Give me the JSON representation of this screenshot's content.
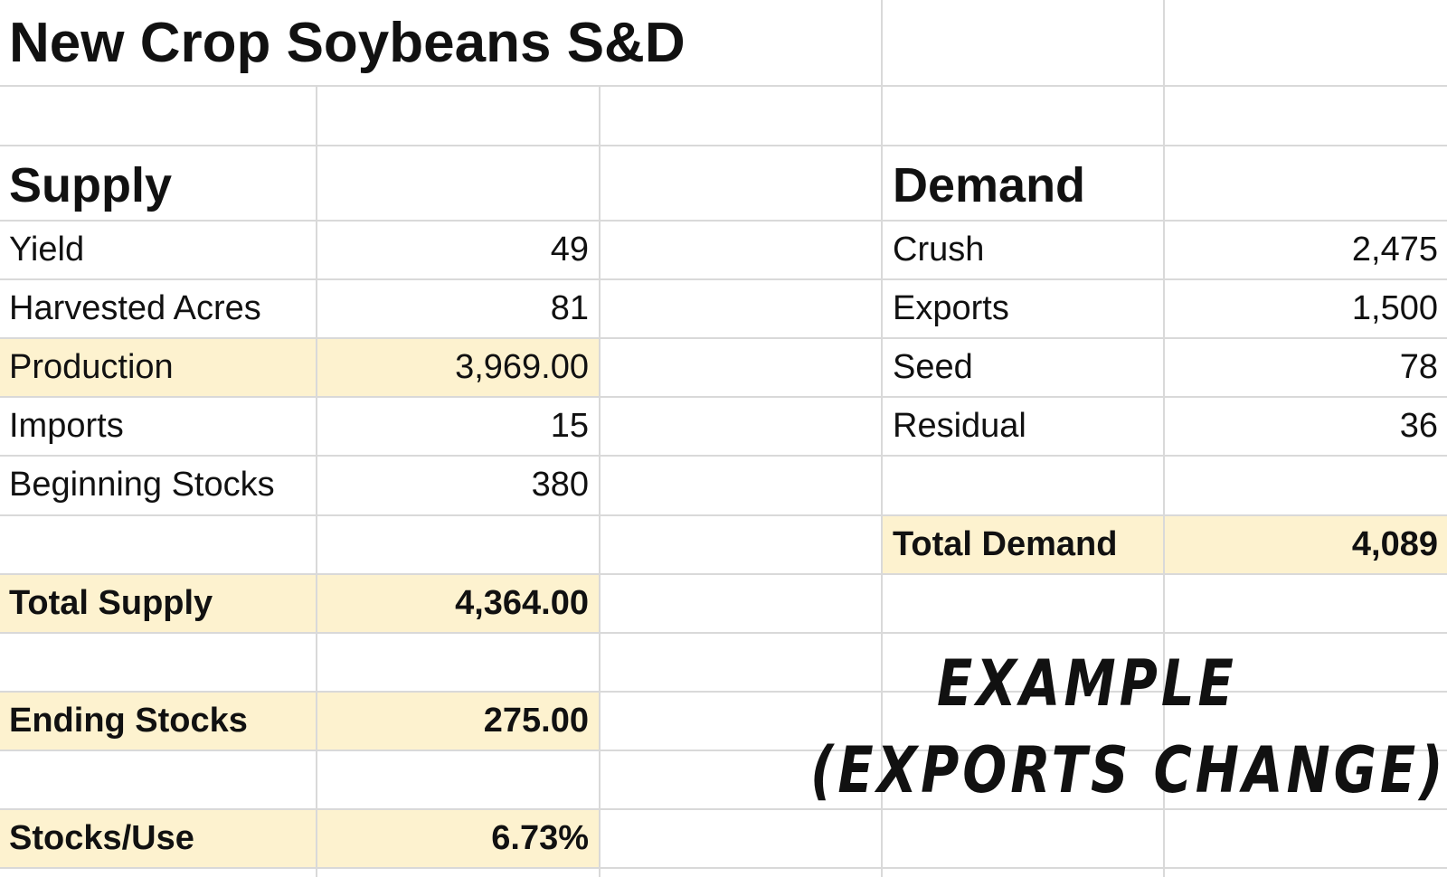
{
  "title": "New Crop Soybeans S&D",
  "supply": {
    "heading": "Supply",
    "rows": [
      {
        "label": "Yield",
        "value": "49"
      },
      {
        "label": "Harvested Acres",
        "value": "81"
      },
      {
        "label": "Production",
        "value": "3,969.00"
      },
      {
        "label": "Imports",
        "value": "15"
      },
      {
        "label": "Beginning Stocks",
        "value": "380"
      }
    ],
    "total": {
      "label": "Total Supply",
      "value": "4,364.00"
    },
    "ending_stocks": {
      "label": "Ending Stocks",
      "value": "275.00"
    },
    "stocks_use": {
      "label": "Stocks/Use",
      "value": "6.73%"
    }
  },
  "demand": {
    "heading": "Demand",
    "rows": [
      {
        "label": "Crush",
        "value": "2,475"
      },
      {
        "label": "Exports",
        "value": "1,500"
      },
      {
        "label": "Seed",
        "value": "78"
      },
      {
        "label": "Residual",
        "value": "36"
      }
    ],
    "total": {
      "label": "Total Demand",
      "value": "4,089"
    }
  },
  "overlay": {
    "line1": "EXAMPLE",
    "line2": "(EXPORTS CHANGE)"
  },
  "colors": {
    "highlight_fill": "#fdf2cf",
    "gridline": "#d9d9d9",
    "text": "#111111"
  }
}
